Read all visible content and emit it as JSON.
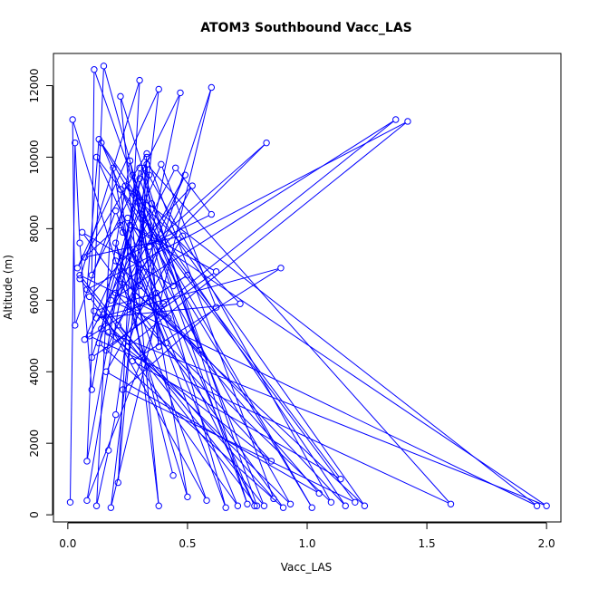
{
  "chart_data": {
    "type": "line",
    "title": "ATOM3 Southbound Vacc_LAS",
    "xlabel": "Vacc_LAS",
    "ylabel": "Altitude (m)",
    "xlim": [
      -0.06,
      2.06
    ],
    "ylim": [
      -200,
      12900
    ],
    "xticks": [
      0.0,
      0.5,
      1.0,
      1.5,
      2.0
    ],
    "xtick_labels": [
      "0.0",
      "0.5",
      "1.0",
      "1.5",
      "2.0"
    ],
    "yticks": [
      0,
      2000,
      4000,
      6000,
      8000,
      10000,
      12000
    ],
    "ytick_labels": [
      "0",
      "2000",
      "4000",
      "6000",
      "8000",
      "10000",
      "12000"
    ],
    "grid": false,
    "markers": "open-circle",
    "series": [
      {
        "color": "#0000ff",
        "points": [
          [
            0.01,
            350
          ],
          [
            0.03,
            10400
          ],
          [
            0.05,
            7600
          ],
          [
            0.1,
            3500
          ],
          [
            0.26,
            9900
          ],
          [
            0.5,
            500
          ],
          [
            0.02,
            11050
          ],
          [
            0.03,
            5300
          ],
          [
            0.2,
            8500
          ],
          [
            0.66,
            200
          ],
          [
            0.15,
            12550
          ],
          [
            0.08,
            1500
          ],
          [
            0.3,
            9700
          ],
          [
            0.79,
            250
          ],
          [
            0.05,
            6600
          ],
          [
            0.3,
            12150
          ],
          [
            0.21,
            900
          ],
          [
            0.33,
            10100
          ],
          [
            0.04,
            6900
          ],
          [
            0.38,
            11900
          ],
          [
            0.18,
            200
          ],
          [
            0.6,
            11950
          ],
          [
            0.25,
            4700
          ],
          [
            1.42,
            11000
          ],
          [
            0.08,
            6300
          ],
          [
            0.13,
            10500
          ],
          [
            1.02,
            200
          ],
          [
            0.22,
            9100
          ],
          [
            0.38,
            250
          ],
          [
            0.22,
            11700
          ],
          [
            0.75,
            300
          ],
          [
            0.11,
            12450
          ],
          [
            0.1,
            6700
          ],
          [
            0.47,
            11800
          ],
          [
            0.34,
            7500
          ],
          [
            0.83,
            10400
          ],
          [
            0.2,
            6200
          ],
          [
            0.85,
            1500
          ],
          [
            0.14,
            5200
          ],
          [
            0.49,
            9500
          ],
          [
            0.16,
            4600
          ],
          [
            1.37,
            11050
          ],
          [
            0.18,
            6000
          ],
          [
            1.96,
            250
          ],
          [
            0.24,
            9200
          ],
          [
            0.72,
            5900
          ],
          [
            0.12,
            5500
          ],
          [
            0.89,
            6900
          ],
          [
            0.27,
            4300
          ],
          [
            1.14,
            1000
          ],
          [
            0.31,
            8400
          ],
          [
            0.38,
            4700
          ],
          [
            0.33,
            9800
          ],
          [
            1.6,
            300
          ],
          [
            0.09,
            5000
          ],
          [
            0.45,
            9700
          ],
          [
            0.6,
            8400
          ],
          [
            0.2,
            7100
          ],
          [
            1.16,
            250
          ],
          [
            0.14,
            10400
          ],
          [
            0.78,
            250
          ],
          [
            0.23,
            7900
          ],
          [
            0.4,
            5900
          ],
          [
            0.08,
            400
          ],
          [
            0.3,
            9400
          ],
          [
            0.55,
            4600
          ],
          [
            0.22,
            6600
          ],
          [
            1.24,
            250
          ],
          [
            0.35,
            8700
          ],
          [
            0.13,
            4800
          ],
          [
            0.9,
            200
          ],
          [
            0.06,
            7900
          ],
          [
            0.44,
            6400
          ],
          [
            0.28,
            9000
          ],
          [
            0.17,
            5100
          ],
          [
            2.0,
            250
          ],
          [
            0.26,
            8100
          ],
          [
            0.62,
            6800
          ],
          [
            0.1,
            4400
          ],
          [
            0.34,
            9500
          ],
          [
            0.2,
            2800
          ],
          [
            0.17,
            1800
          ],
          [
            0.12,
            250
          ],
          [
            0.19,
            9700
          ],
          [
            0.29,
            5800
          ],
          [
            0.5,
            6700
          ],
          [
            0.07,
            4900
          ],
          [
            0.39,
            9800
          ],
          [
            0.62,
            5800
          ],
          [
            0.23,
            3500
          ],
          [
            1.2,
            350
          ],
          [
            0.12,
            10000
          ],
          [
            0.42,
            5500
          ],
          [
            0.05,
            6700
          ],
          [
            0.82,
            250
          ],
          [
            0.27,
            9500
          ],
          [
            0.37,
            6200
          ],
          [
            0.11,
            5700
          ],
          [
            0.93,
            300
          ],
          [
            0.25,
            8300
          ],
          [
            0.07,
            7200
          ],
          [
            0.48,
            7800
          ],
          [
            0.16,
            4000
          ],
          [
            1.05,
            600
          ],
          [
            0.3,
            6400
          ],
          [
            0.33,
            10000
          ],
          [
            0.86,
            450
          ],
          [
            0.21,
            5300
          ],
          [
            0.52,
            9200
          ],
          [
            0.09,
            6100
          ],
          [
            0.71,
            250
          ],
          [
            0.22,
            8100
          ],
          [
            0.41,
            4800
          ],
          [
            1.1,
            350
          ],
          [
            0.32,
            9700
          ],
          [
            0.15,
            5600
          ],
          [
            0.58,
            400
          ],
          [
            0.2,
            7600
          ],
          [
            0.44,
            1100
          ]
        ]
      }
    ]
  }
}
